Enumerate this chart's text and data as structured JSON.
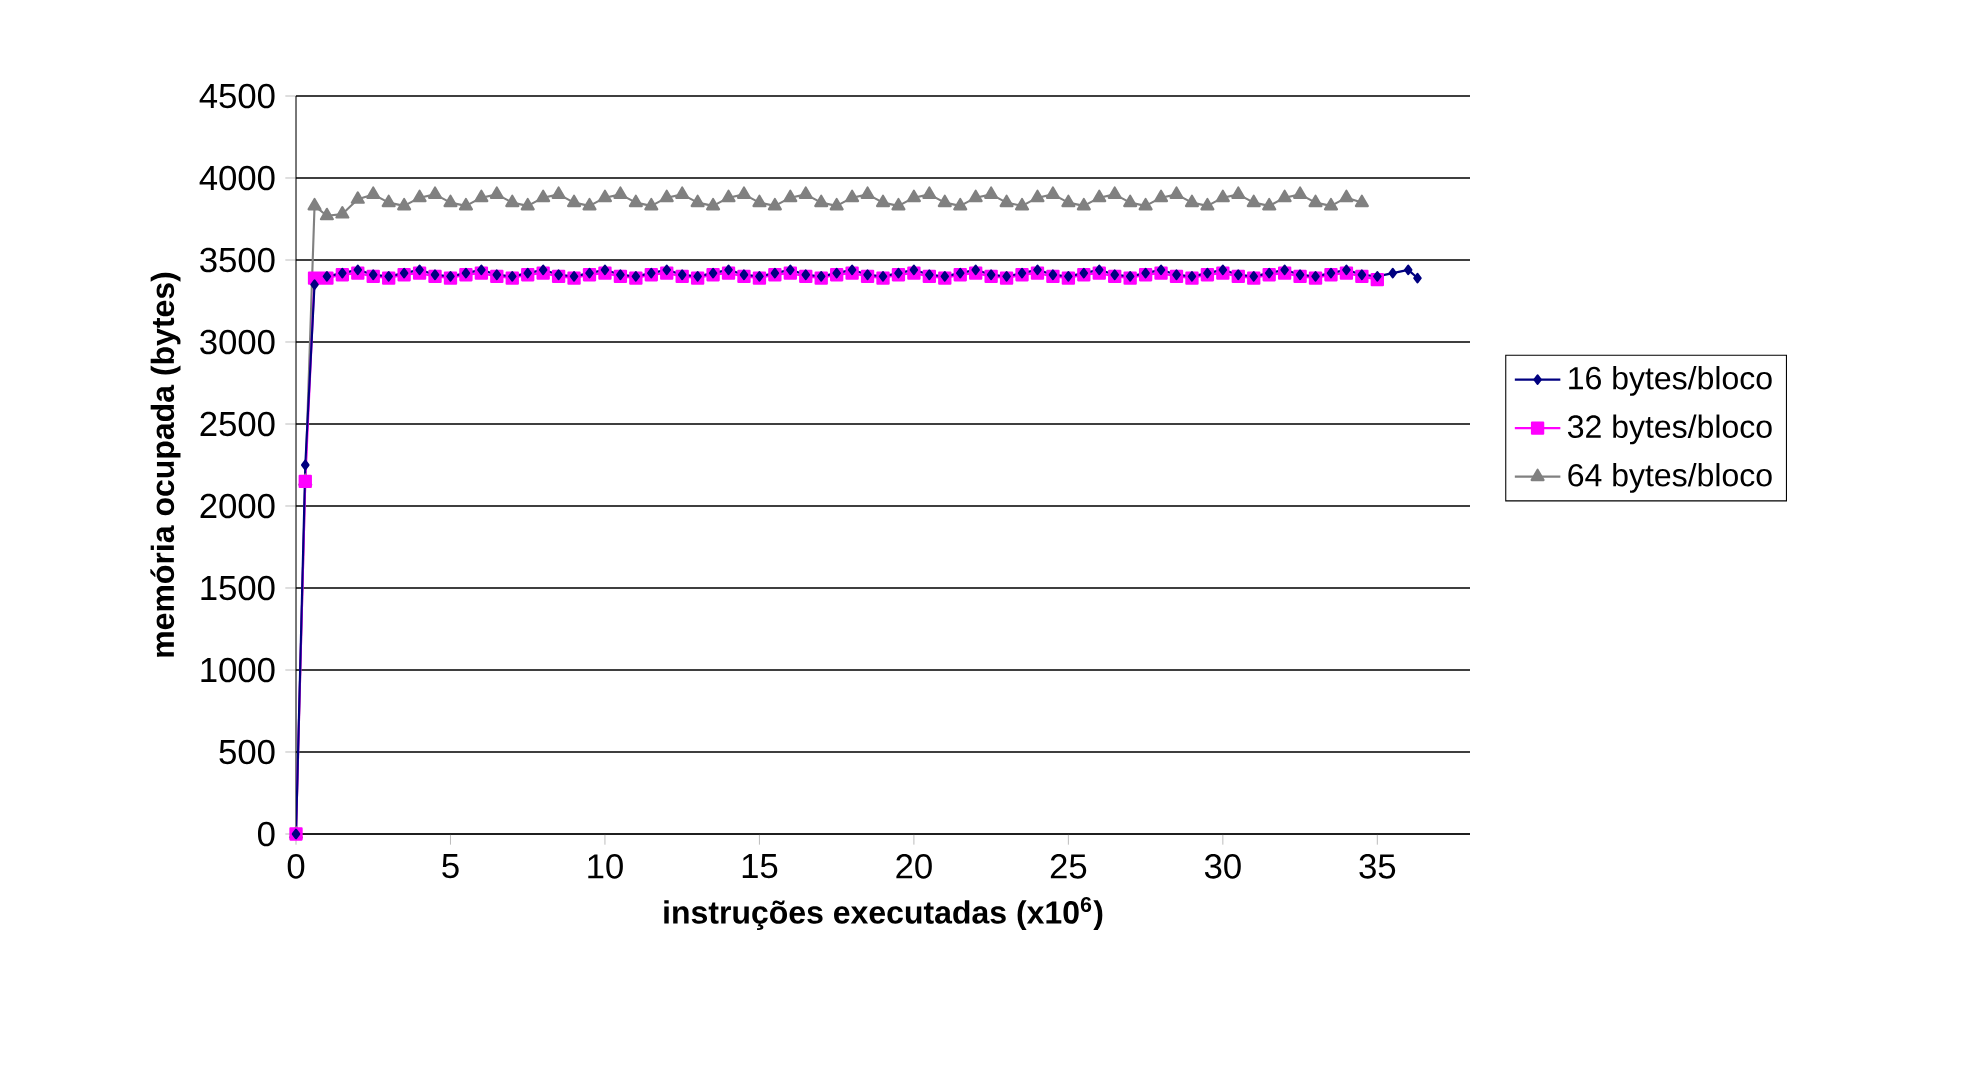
{
  "chart_data": {
    "type": "line",
    "xlabel": "instruções executadas (x10$^{6}$)",
    "ylabel": "memória ocupada (bytes)",
    "xlim": [
      0,
      38
    ],
    "xticks": [
      0,
      5,
      10,
      15,
      20,
      25,
      30,
      35
    ],
    "ylim": [
      0,
      4500
    ],
    "yticks": [
      0,
      500,
      1000,
      1500,
      2000,
      2500,
      3000,
      3500,
      4000,
      4500
    ],
    "grid": "y",
    "legend": "right",
    "line_style": "solid",
    "series": [
      {
        "name": "16 bytes/bloco",
        "color": "#000080",
        "marker": "diamond",
        "x": [
          0,
          0.3,
          0.6,
          1,
          1.5,
          2,
          2.5,
          3,
          3.5,
          4,
          4.5,
          5,
          5.5,
          6,
          6.5,
          7,
          7.5,
          8,
          8.5,
          9,
          9.5,
          10,
          10.5,
          11,
          11.5,
          12,
          12.5,
          13,
          13.5,
          14,
          14.5,
          15,
          15.5,
          16,
          16.5,
          17,
          17.5,
          18,
          18.5,
          19,
          19.5,
          20,
          20.5,
          21,
          21.5,
          22,
          22.5,
          23,
          23.5,
          24,
          24.5,
          25,
          25.5,
          26,
          26.5,
          27,
          27.5,
          28,
          28.5,
          29,
          29.5,
          30,
          30.5,
          31,
          31.5,
          32,
          32.5,
          33,
          33.5,
          34,
          34.5,
          35,
          35.5,
          36,
          36.3
        ],
        "values": [
          0,
          2250,
          3350,
          3400,
          3420,
          3440,
          3410,
          3400,
          3420,
          3440,
          3410,
          3400,
          3420,
          3440,
          3410,
          3400,
          3420,
          3440,
          3410,
          3400,
          3420,
          3440,
          3410,
          3400,
          3420,
          3440,
          3410,
          3400,
          3420,
          3440,
          3410,
          3400,
          3420,
          3440,
          3410,
          3400,
          3420,
          3440,
          3410,
          3400,
          3420,
          3440,
          3410,
          3400,
          3420,
          3440,
          3410,
          3400,
          3420,
          3440,
          3410,
          3400,
          3420,
          3440,
          3410,
          3400,
          3420,
          3440,
          3410,
          3400,
          3420,
          3440,
          3410,
          3400,
          3420,
          3440,
          3410,
          3400,
          3420,
          3440,
          3410,
          3400,
          3420,
          3440,
          3390
        ]
      },
      {
        "name": "32 bytes/bloco",
        "color": "#ff00ff",
        "marker": "square",
        "x": [
          0,
          0.3,
          0.6,
          1,
          1.5,
          2,
          2.5,
          3,
          3.5,
          4,
          4.5,
          5,
          5.5,
          6,
          6.5,
          7,
          7.5,
          8,
          8.5,
          9,
          9.5,
          10,
          10.5,
          11,
          11.5,
          12,
          12.5,
          13,
          13.5,
          14,
          14.5,
          15,
          15.5,
          16,
          16.5,
          17,
          17.5,
          18,
          18.5,
          19,
          19.5,
          20,
          20.5,
          21,
          21.5,
          22,
          22.5,
          23,
          23.5,
          24,
          24.5,
          25,
          25.5,
          26,
          26.5,
          27,
          27.5,
          28,
          28.5,
          29,
          29.5,
          30,
          30.5,
          31,
          31.5,
          32,
          32.5,
          33,
          33.5,
          34,
          34.5,
          35
        ],
        "values": [
          0,
          2150,
          3390,
          3390,
          3410,
          3420,
          3400,
          3390,
          3410,
          3420,
          3400,
          3390,
          3410,
          3420,
          3400,
          3390,
          3410,
          3420,
          3400,
          3390,
          3410,
          3420,
          3400,
          3390,
          3410,
          3420,
          3400,
          3390,
          3410,
          3420,
          3400,
          3390,
          3410,
          3420,
          3400,
          3390,
          3410,
          3420,
          3400,
          3390,
          3410,
          3420,
          3400,
          3390,
          3410,
          3420,
          3400,
          3390,
          3410,
          3420,
          3400,
          3390,
          3410,
          3420,
          3400,
          3390,
          3410,
          3420,
          3400,
          3390,
          3410,
          3420,
          3400,
          3390,
          3410,
          3420,
          3400,
          3390,
          3410,
          3420,
          3400,
          3380
        ]
      },
      {
        "name": "64 bytes/bloco",
        "color": "#808080",
        "marker": "triangle",
        "x": [
          0,
          0.3,
          0.6,
          1,
          1.5,
          2,
          2.5,
          3,
          3.5,
          4,
          4.5,
          5,
          5.5,
          6,
          6.5,
          7,
          7.5,
          8,
          8.5,
          9,
          9.5,
          10,
          10.5,
          11,
          11.5,
          12,
          12.5,
          13,
          13.5,
          14,
          14.5,
          15,
          15.5,
          16,
          16.5,
          17,
          17.5,
          18,
          18.5,
          19,
          19.5,
          20,
          20.5,
          21,
          21.5,
          22,
          22.5,
          23,
          23.5,
          24,
          24.5,
          25,
          25.5,
          26,
          26.5,
          27,
          27.5,
          28,
          28.5,
          29,
          29.5,
          30,
          30.5,
          31,
          31.5,
          32,
          32.5,
          33,
          33.5,
          34,
          34.5
        ],
        "values": [
          0,
          2150,
          3830,
          3770,
          3780,
          3870,
          3900,
          3850,
          3830,
          3880,
          3900,
          3850,
          3830,
          3880,
          3900,
          3850,
          3830,
          3880,
          3900,
          3850,
          3830,
          3880,
          3900,
          3850,
          3830,
          3880,
          3900,
          3850,
          3830,
          3880,
          3900,
          3850,
          3830,
          3880,
          3900,
          3850,
          3830,
          3880,
          3900,
          3850,
          3830,
          3880,
          3900,
          3850,
          3830,
          3880,
          3900,
          3850,
          3830,
          3880,
          3900,
          3850,
          3830,
          3880,
          3900,
          3850,
          3830,
          3880,
          3900,
          3850,
          3830,
          3880,
          3900,
          3850,
          3830,
          3880,
          3900,
          3850,
          3830,
          3880,
          3850
        ]
      }
    ]
  }
}
